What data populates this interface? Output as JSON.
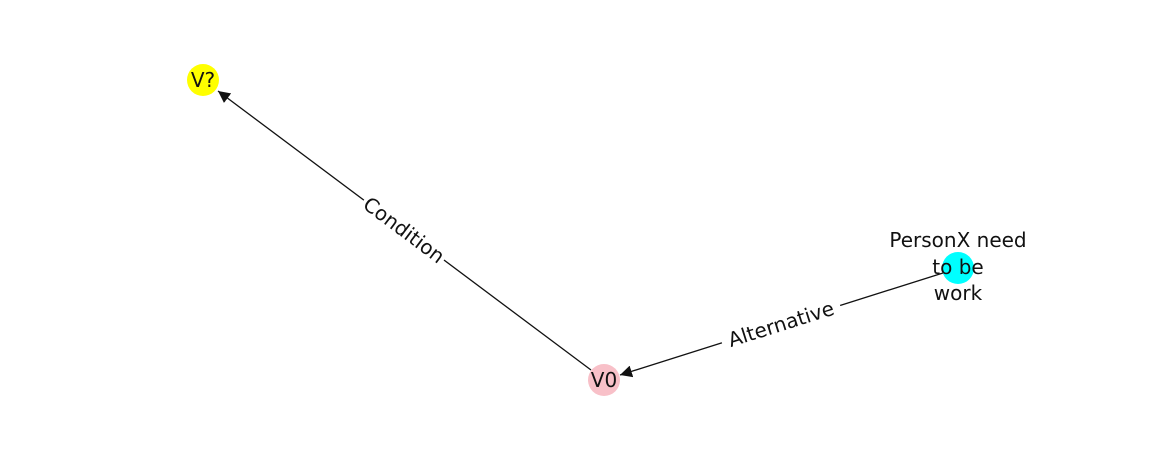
{
  "nodes": [
    {
      "id": "v_question",
      "label": "V?",
      "color": "#ffff00"
    },
    {
      "id": "v0",
      "label": "V0",
      "color": "#f8c0c8"
    },
    {
      "id": "personx",
      "label_lines": [
        "PersonX need",
        "to be",
        "work"
      ],
      "color": "#00ffff"
    }
  ],
  "edges": [
    {
      "from": "v0",
      "to": "v_question",
      "label": "Condition"
    },
    {
      "from": "personx",
      "to": "v0",
      "label": "Alternative"
    }
  ],
  "colors": {
    "edge": "#111111",
    "text": "#111111",
    "background": "#ffffff"
  }
}
